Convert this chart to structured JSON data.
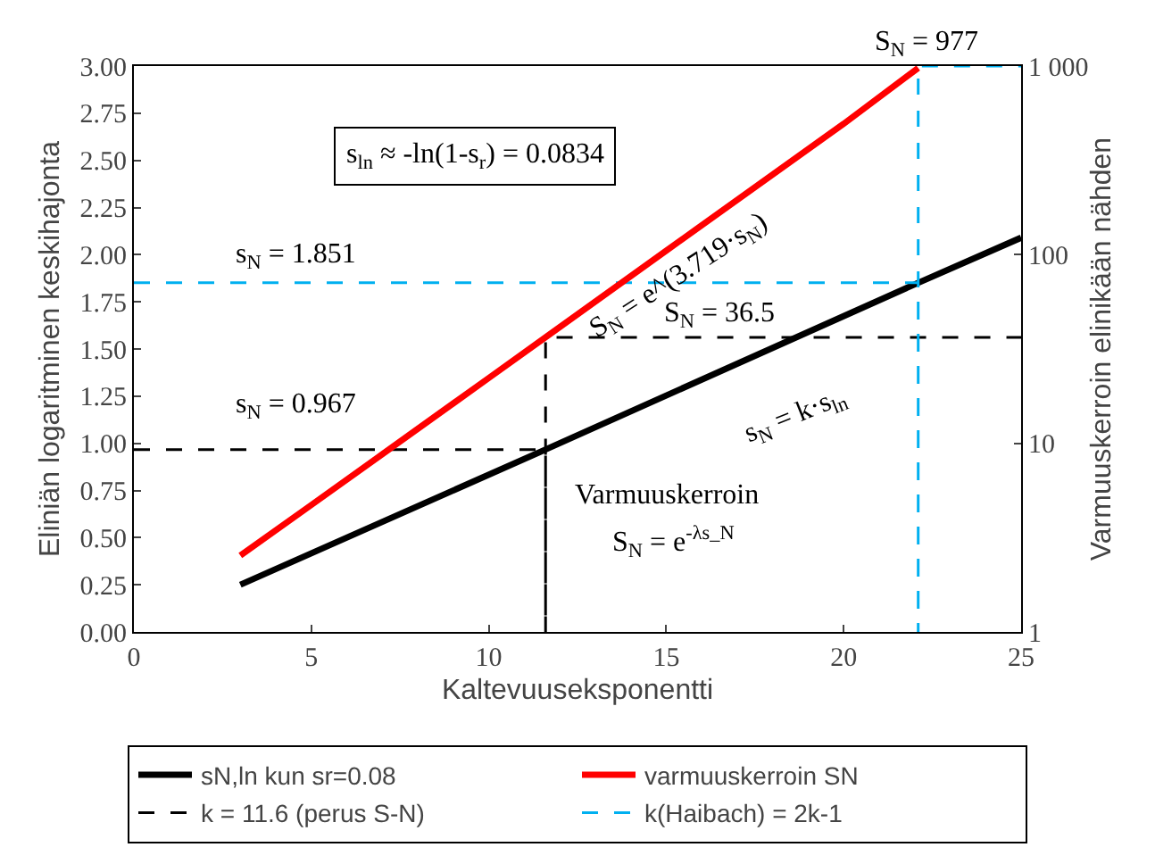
{
  "chart_data": {
    "type": "line",
    "xlabel": "Kaltevuuseksponentti",
    "ylabel": "Eliniän logaritminen keskihajonta",
    "y2label": "Varmuuskerroin elinikään nähden",
    "xlim": [
      0,
      25
    ],
    "xticks": [
      0,
      5,
      10,
      15,
      20,
      25
    ],
    "ylim": [
      0,
      3
    ],
    "yticks": [
      {
        "value": 0,
        "label": "0.00"
      },
      0.25,
      {
        "value": 0.5,
        "label": "0.50"
      },
      0.75,
      {
        "value": 1,
        "label": "1.00"
      },
      1.25,
      {
        "value": 1.5,
        "label": "1.50"
      },
      1.75,
      {
        "value": 2,
        "label": "2.00"
      },
      2.25,
      {
        "value": 2.5,
        "label": "2.50"
      },
      2.75,
      {
        "value": 3,
        "label": "3.00"
      }
    ],
    "y2lim": [
      1,
      1000
    ],
    "y2ticks": [
      1,
      10,
      100,
      {
        "value": 1000,
        "label": "1 000"
      }
    ],
    "log": "y2",
    "grid": false,
    "legend": "bottom",
    "marker": "none",
    "series": [
      {
        "name": "sN,ln kun sr=0.08",
        "color": "#000000",
        "x": [
          3,
          11.6,
          22.1,
          25
        ],
        "values": [
          0.25,
          0.967,
          1.851,
          2.09
        ],
        "line_style": "solid"
      },
      {
        "name": "varmuuskerroin SN",
        "color": "#ff0000",
        "axis": "y2",
        "x": [
          3,
          5,
          7,
          10,
          11.6,
          15,
          20,
          22.1
        ],
        "values": [
          2.54,
          4.71,
          8.75,
          22.2,
          36.5,
          105,
          494,
          977
        ],
        "line_style": "solid"
      },
      {
        "name": "k = 11.6 (perus S-N)",
        "color": "#000000",
        "x": [
          0,
          11.6,
          11.6,
          11.6,
          25
        ],
        "values": [
          0.967,
          0.967,
          0,
          1.562,
          1.562
        ],
        "line_style": "dashed"
      },
      {
        "name": "k(Haibach) = 2k-1",
        "color": "#00b0f0",
        "x": [
          0,
          22.1,
          22.1,
          22.1,
          25
        ],
        "values": [
          1.851,
          1.851,
          0,
          3,
          3
        ],
        "line_style": "dashed"
      }
    ],
    "annotations": [
      "s$_{ln}$ ≈ -ln(1-s$_{r}$) = 0.0834",
      "S$_{N}$ = 977",
      "s$_{N}$ = 1.851",
      "S$_{N}$ = e^(3.719·s$_{N}$)",
      "S$_{N}$ = 36.5",
      "s$_{N}$ = 0.967",
      "s$_{N}$ = k·s$_{ln}$",
      "Varmuuskerroin",
      "S$_{N}$ = e$^{-λs_N}$"
    ]
  }
}
